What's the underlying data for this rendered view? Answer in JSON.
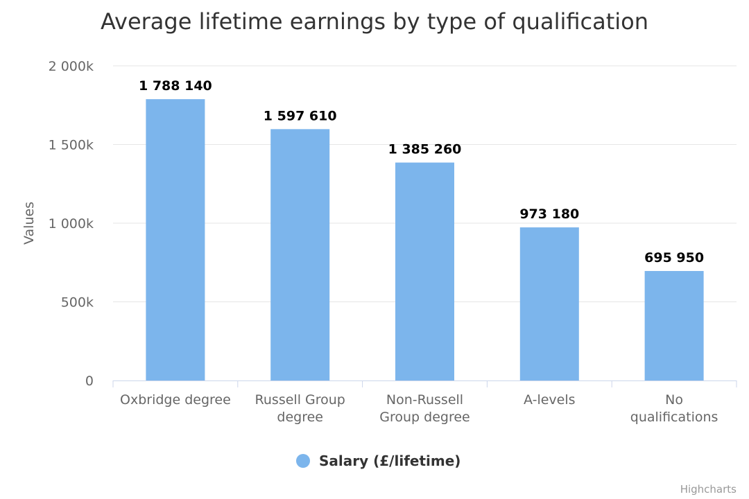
{
  "chart_data": {
    "type": "bar",
    "title": "Average lifetime earnings by type of qualification",
    "ylabel": "Values",
    "xlabel": "",
    "categories": [
      [
        "Oxbridge degree"
      ],
      [
        "Russell Group",
        "degree"
      ],
      [
        "Non-Russell",
        "Group degree"
      ],
      [
        "A-levels"
      ],
      [
        "No",
        "qualifications"
      ]
    ],
    "series": [
      {
        "name": "Salary (£/lifetime)",
        "values": [
          1788140,
          1597610,
          1385260,
          973180,
          695950
        ],
        "data_labels": [
          "1 788 140",
          "1 597 610",
          "1 385 260",
          "973 180",
          "695 950"
        ],
        "color": "#7cb5ec"
      }
    ],
    "ylim": [
      0,
      2000000
    ],
    "y_ticks": [
      {
        "value": 0,
        "label": "0"
      },
      {
        "value": 500000,
        "label": "500k"
      },
      {
        "value": 1000000,
        "label": "1 000k"
      },
      {
        "value": 1500000,
        "label": "1 500k"
      },
      {
        "value": 2000000,
        "label": "2 000k"
      }
    ],
    "grid": true,
    "legend_position": "bottom-center",
    "credits": "Highcharts"
  }
}
